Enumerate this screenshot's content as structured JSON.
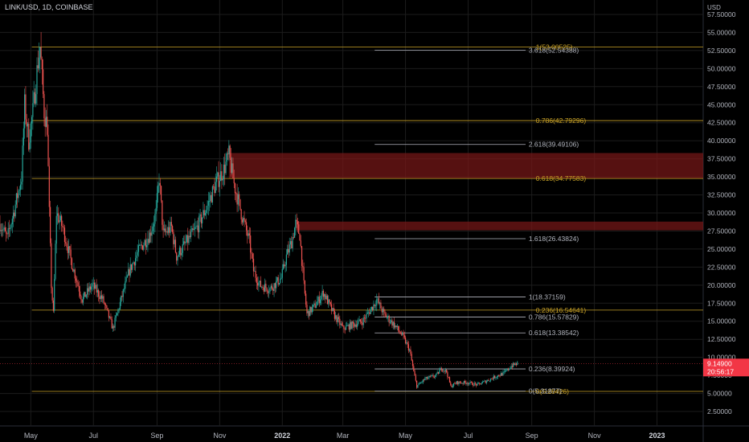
{
  "header": {
    "symbol": "LINK/USD, 1D, COINBASE",
    "currency": "USD"
  },
  "colors": {
    "background": "#000000",
    "grid": "#1c1c1c",
    "up": "#26a69a",
    "down": "#ef5350",
    "fib_gold": "#c9a227",
    "fib_gray": "#b2b5be",
    "zone": "#7a1818",
    "price_tag": "#f23645"
  },
  "chart_data": {
    "type": "candlestick",
    "title": "LINK/USD, 1D, COINBASE",
    "ylabel": "USD",
    "grid": true,
    "y_scale": "linear",
    "ylim": [
      0.5,
      59.5
    ],
    "xlim": [
      "2021-04-01",
      "2023-02-15"
    ],
    "y_ticks": [
      2.5,
      5,
      7.5,
      10,
      12.5,
      15,
      17.5,
      20,
      22.5,
      25,
      27.5,
      30,
      32.5,
      35,
      37.5,
      40,
      42.5,
      45,
      47.5,
      50,
      52.5,
      55,
      57.5
    ],
    "y_tick_labels": [
      "2.50000",
      "5.00000",
      "7.50000",
      "10.00000",
      "12.50000",
      "15.00000",
      "17.50000",
      "20.00000",
      "22.50000",
      "25.00000",
      "27.50000",
      "30.00000",
      "32.50000",
      "35.00000",
      "37.50000",
      "40.00000",
      "42.50000",
      "45.00000",
      "47.50000",
      "50.00000",
      "52.50000",
      "55.00000",
      "57.50000"
    ],
    "x_ticks": [
      {
        "label": "May",
        "date": "2021-05-01",
        "bold": false
      },
      {
        "label": "Jul",
        "date": "2021-07-01",
        "bold": false
      },
      {
        "label": "Sep",
        "date": "2021-09-01",
        "bold": false
      },
      {
        "label": "Nov",
        "date": "2021-11-01",
        "bold": false
      },
      {
        "label": "2022",
        "date": "2022-01-01",
        "bold": true
      },
      {
        "label": "Mar",
        "date": "2022-03-01",
        "bold": false
      },
      {
        "label": "May",
        "date": "2022-05-01",
        "bold": false
      },
      {
        "label": "Jul",
        "date": "2022-07-01",
        "bold": false
      },
      {
        "label": "Sep",
        "date": "2022-09-01",
        "bold": false
      },
      {
        "label": "Nov",
        "date": "2022-11-01",
        "bold": false
      },
      {
        "label": "2023",
        "date": "2023-01-01",
        "bold": true
      }
    ],
    "price_path": [
      [
        "2021-04-01",
        28.5
      ],
      [
        "2021-04-08",
        26.5
      ],
      [
        "2021-04-15",
        30.5
      ],
      [
        "2021-04-22",
        35
      ],
      [
        "2021-04-25",
        45
      ],
      [
        "2021-04-29",
        40
      ],
      [
        "2021-05-03",
        44
      ],
      [
        "2021-05-08",
        51
      ],
      [
        "2021-05-10",
        53
      ],
      [
        "2021-05-14",
        44
      ],
      [
        "2021-05-17",
        42
      ],
      [
        "2021-05-19",
        30
      ],
      [
        "2021-05-21",
        20
      ],
      [
        "2021-05-23",
        16
      ],
      [
        "2021-05-26",
        30
      ],
      [
        "2021-06-01",
        28
      ],
      [
        "2021-06-10",
        23
      ],
      [
        "2021-06-20",
        18
      ],
      [
        "2021-06-30",
        20
      ],
      [
        "2021-07-10",
        18
      ],
      [
        "2021-07-20",
        14
      ],
      [
        "2021-07-28",
        18
      ],
      [
        "2021-08-05",
        22
      ],
      [
        "2021-08-15",
        25
      ],
      [
        "2021-08-25",
        27
      ],
      [
        "2021-08-31",
        30
      ],
      [
        "2021-09-03",
        35
      ],
      [
        "2021-09-07",
        27
      ],
      [
        "2021-09-15",
        28
      ],
      [
        "2021-09-20",
        24
      ],
      [
        "2021-09-30",
        26
      ],
      [
        "2021-10-10",
        28
      ],
      [
        "2021-10-20",
        31
      ],
      [
        "2021-10-28",
        34
      ],
      [
        "2021-11-05",
        36
      ],
      [
        "2021-11-10",
        38
      ],
      [
        "2021-11-15",
        34
      ],
      [
        "2021-11-22",
        30
      ],
      [
        "2021-11-30",
        26
      ],
      [
        "2021-12-04",
        22
      ],
      [
        "2021-12-10",
        20
      ],
      [
        "2021-12-20",
        19.5
      ],
      [
        "2021-12-31",
        21
      ],
      [
        "2022-01-05",
        24
      ],
      [
        "2022-01-10",
        26
      ],
      [
        "2022-01-14",
        28.5
      ],
      [
        "2022-01-18",
        27
      ],
      [
        "2022-01-22",
        20
      ],
      [
        "2022-01-25",
        16
      ],
      [
        "2022-02-01",
        17
      ],
      [
        "2022-02-10",
        19
      ],
      [
        "2022-02-20",
        16
      ],
      [
        "2022-03-01",
        14
      ],
      [
        "2022-03-10",
        14.5
      ],
      [
        "2022-03-20",
        15
      ],
      [
        "2022-03-30",
        17
      ],
      [
        "2022-04-03",
        18
      ],
      [
        "2022-04-10",
        16
      ],
      [
        "2022-04-20",
        14.5
      ],
      [
        "2022-04-28",
        13
      ],
      [
        "2022-05-05",
        11
      ],
      [
        "2022-05-09",
        8
      ],
      [
        "2022-05-12",
        6
      ],
      [
        "2022-05-20",
        7
      ],
      [
        "2022-05-31",
        7.5
      ],
      [
        "2022-06-05",
        8.5
      ],
      [
        "2022-06-10",
        8
      ],
      [
        "2022-06-14",
        6
      ],
      [
        "2022-06-20",
        6.5
      ],
      [
        "2022-06-30",
        6.5
      ],
      [
        "2022-07-10",
        6.2
      ],
      [
        "2022-07-20",
        6.8
      ],
      [
        "2022-07-30",
        7.5
      ],
      [
        "2022-08-05",
        7.8
      ],
      [
        "2022-08-12",
        8.8
      ],
      [
        "2022-08-18",
        9.149
      ]
    ],
    "fibonacci_sets": [
      {
        "color": "gold",
        "line_start": "2021-05-02",
        "label_date": "2022-09-05",
        "levels": [
          {
            "ratio": "1",
            "value": 53.00525,
            "label": "1(53.00525)"
          },
          {
            "ratio": "0.786",
            "value": 42.79296,
            "label": "0.786(42.79296)"
          },
          {
            "ratio": "0.618",
            "value": 34.77583,
            "label": "0.618(34.77583)"
          },
          {
            "ratio": "0.236",
            "value": 16.54641,
            "label": "0.236(16.54641)"
          },
          {
            "ratio": "0",
            "value": 5.28426,
            "label": "0(5.28426)"
          }
        ]
      },
      {
        "color": "gray",
        "line_start": "2022-04-01",
        "line_end": "2022-08-26",
        "label_date": "2022-08-29",
        "levels": [
          {
            "ratio": "3.618",
            "value": 52.54388,
            "label": "3.618(52.54388)"
          },
          {
            "ratio": "2.618",
            "value": 39.49106,
            "label": "2.618(39.49106)"
          },
          {
            "ratio": "1.618",
            "value": 26.43824,
            "label": "1.618(26.43824)"
          },
          {
            "ratio": "1",
            "value": 18.37159,
            "label": "1(18.37159)"
          },
          {
            "ratio": "0.786",
            "value": 15.57829,
            "label": "0.786(15.57829)"
          },
          {
            "ratio": "0.618",
            "value": 13.38542,
            "label": "0.618(13.38542)"
          },
          {
            "ratio": "0.236",
            "value": 8.39924,
            "label": "0.236(8.39924)"
          },
          {
            "ratio": "0",
            "value": 5.31877,
            "label": "0(5.31877)"
          }
        ]
      }
    ],
    "zones": [
      {
        "from_date": "2021-11-10",
        "y_low": 34.8,
        "y_high": 38.3
      },
      {
        "from_date": "2022-01-14",
        "y_low": 27.6,
        "y_high": 28.8
      }
    ],
    "last_price": {
      "value": 9.149,
      "label": "9.14900",
      "countdown": "20:56:17"
    }
  }
}
